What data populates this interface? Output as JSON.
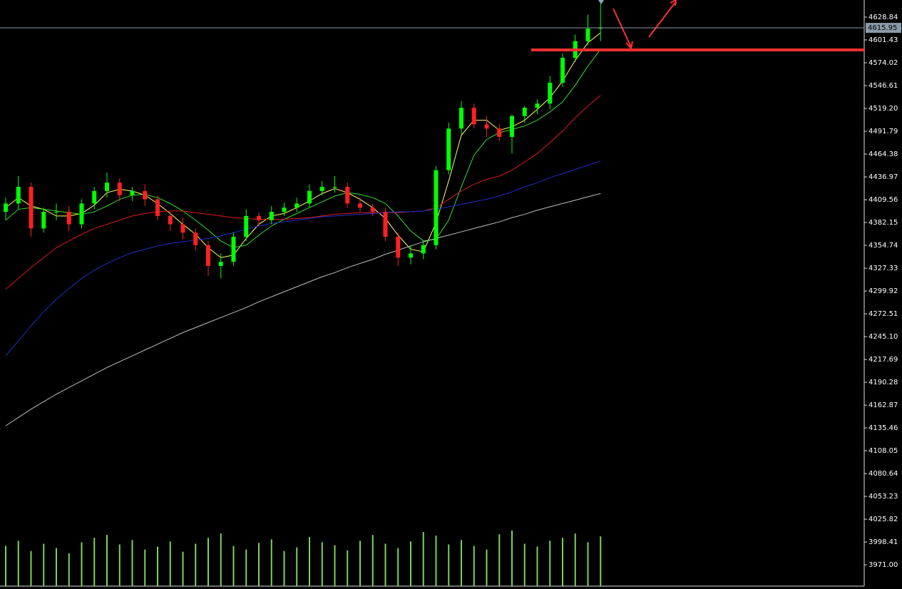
{
  "chart_data": {
    "type": "candlestick",
    "ylim": [
      3942,
      4649.4
    ],
    "yticks": [
      4628.84,
      4601.43,
      4574.02,
      4546.61,
      {
        "value": 4519.2,
        "label": "4519.20"
      },
      4491.79,
      4464.38,
      4436.97,
      4409.56,
      4382.15,
      4354.74,
      4327.33,
      4299.92,
      4272.51,
      {
        "value": 4245.1,
        "label": "4245.10"
      },
      4217.69,
      4190.28,
      4162.87,
      4135.46,
      4108.05,
      4080.64,
      4053.23,
      4025.82,
      3998.41,
      {
        "value": 3971,
        "label": "3971.00"
      }
    ],
    "current_price": 4615.95,
    "up_color": "#00ff00",
    "down_color": "#ff2020",
    "volume_color": "#7cd35a",
    "candles": {
      "open": [
        4395,
        4405,
        4425,
        4375,
        4395,
        4395,
        4380,
        4405,
        4420,
        4430,
        4415,
        4420,
        4410,
        4390,
        4380,
        4370,
        4355,
        4330,
        4335,
        4365,
        4390,
        4385,
        4395,
        4400,
        4405,
        4420,
        4425,
        4425,
        4405,
        4400,
        4395,
        4365,
        4340,
        4345,
        4355,
        4445,
        4495,
        4520,
        4500,
        4495,
        4485,
        4510,
        4520,
        4525,
        4550,
        4580,
        4600,
        4615
      ],
      "high": [
        4412,
        4438,
        4430,
        4400,
        4405,
        4402,
        4410,
        4425,
        4442,
        4435,
        4425,
        4428,
        4415,
        4395,
        4388,
        4375,
        4360,
        4345,
        4370,
        4398,
        4394,
        4402,
        4406,
        4412,
        4428,
        4432,
        4438,
        4430,
        4412,
        4405,
        4400,
        4370,
        4355,
        4360,
        4450,
        4502,
        4528,
        4525,
        4510,
        4500,
        4512,
        4522,
        4530,
        4558,
        4585,
        4608,
        4632,
        4645
      ],
      "low": [
        4385,
        4398,
        4365,
        4370,
        4385,
        4372,
        4375,
        4398,
        4412,
        4408,
        4408,
        4402,
        4385,
        4372,
        4362,
        4348,
        4318,
        4315,
        4330,
        4360,
        4378,
        4380,
        4390,
        4395,
        4400,
        4415,
        4418,
        4400,
        4395,
        4390,
        4360,
        4330,
        4332,
        4338,
        4350,
        4440,
        4488,
        4495,
        4485,
        4480,
        4465,
        4502,
        4512,
        4518,
        4545,
        4575,
        4595,
        4600
      ],
      "close": [
        4405,
        4425,
        4375,
        4395,
        4395,
        4380,
        4405,
        4420,
        4430,
        4415,
        4420,
        4410,
        4390,
        4380,
        4370,
        4355,
        4330,
        4335,
        4365,
        4390,
        4385,
        4395,
        4400,
        4405,
        4420,
        4425,
        4425,
        4405,
        4400,
        4395,
        4365,
        4340,
        4345,
        4355,
        4445,
        4495,
        4520,
        4500,
        4495,
        4485,
        4510,
        4520,
        4525,
        4550,
        4580,
        4600,
        4615,
        4616
      ]
    },
    "series": [
      {
        "color": "#ffff66",
        "values": [
          4400,
          4412,
          4402,
          4398,
          4390,
          4390,
          4393,
          4403,
          4418,
          4422,
          4420,
          4415,
          4405,
          4393,
          4380,
          4368,
          4352,
          4340,
          4343,
          4363,
          4380,
          4390,
          4393,
          4400,
          4408,
          4417,
          4423,
          4418,
          4410,
          4400,
          4387,
          4367,
          4350,
          4347,
          4382,
          4432,
          4487,
          4505,
          4505,
          4493,
          4497,
          4505,
          4518,
          4532,
          4552,
          4577,
          4598,
          4610
        ]
      },
      {
        "color": "#33dd33",
        "values": [
          4385,
          4398,
          4400,
          4398,
          4396,
          4394,
          4392,
          4395,
          4402,
          4410,
          4415,
          4416,
          4412,
          4405,
          4396,
          4385,
          4373,
          4360,
          4352,
          4355,
          4367,
          4378,
          4386,
          4393,
          4400,
          4407,
          4414,
          4418,
          4416,
          4412,
          4405,
          4390,
          4372,
          4360,
          4362,
          4385,
          4425,
          4463,
          4482,
          4490,
          4494,
          4498,
          4505,
          4515,
          4527,
          4547,
          4570,
          4590
        ]
      },
      {
        "color": "#dd1a1a",
        "values": [
          4302,
          4315,
          4328,
          4340,
          4352,
          4360,
          4368,
          4375,
          4380,
          4385,
          4390,
          4393,
          4395,
          4396,
          4396,
          4394,
          4392,
          4390,
          4388,
          4387,
          4386,
          4386,
          4386,
          4387,
          4388,
          4390,
          4392,
          4393,
          4394,
          4394,
          4394,
          4394,
          4395,
          4396,
          4400,
          4410,
          4420,
          4428,
          4434,
          4438,
          4445,
          4455,
          4465,
          4478,
          4492,
          4508,
          4522,
          4535
        ]
      },
      {
        "color": "#1f2fc8",
        "values": [
          4222,
          4240,
          4258,
          4275,
          4290,
          4303,
          4315,
          4325,
          4333,
          4340,
          4346,
          4350,
          4354,
          4357,
          4359,
          4361,
          4363,
          4366,
          4370,
          4374,
          4378,
          4381,
          4383,
          4385,
          4387,
          4389,
          4390,
          4391,
          4392,
          4393,
          4394,
          4395,
          4395,
          4396,
          4398,
          4401,
          4404,
          4407,
          4410,
          4414,
          4419,
          4425,
          4430,
          4436,
          4441,
          4446,
          4451,
          4456
        ]
      },
      {
        "color": "#bdbdbd",
        "values": [
          4138,
          4148,
          4158,
          4167,
          4176,
          4184,
          4192,
          4200,
          4208,
          4215,
          4222,
          4229,
          4236,
          4243,
          4250,
          4256,
          4262,
          4268,
          4274,
          4280,
          4287,
          4293,
          4299,
          4305,
          4311,
          4317,
          4322,
          4328,
          4333,
          4338,
          4344,
          4349,
          4354,
          4359,
          4363,
          4367,
          4371,
          4375,
          4379,
          4383,
          4388,
          4392,
          4397,
          4401,
          4405,
          4409,
          4413,
          4417
        ]
      }
    ],
    "volume": [
      55,
      62,
      48,
      58,
      52,
      45,
      60,
      66,
      70,
      57,
      63,
      50,
      54,
      61,
      47,
      58,
      66,
      72,
      55,
      50,
      59,
      64,
      48,
      53,
      67,
      60,
      56,
      49,
      62,
      70,
      58,
      52,
      61,
      74,
      69,
      57,
      63,
      55,
      50,
      71,
      76,
      58,
      54,
      62,
      66,
      72,
      60,
      68
    ]
  }
}
